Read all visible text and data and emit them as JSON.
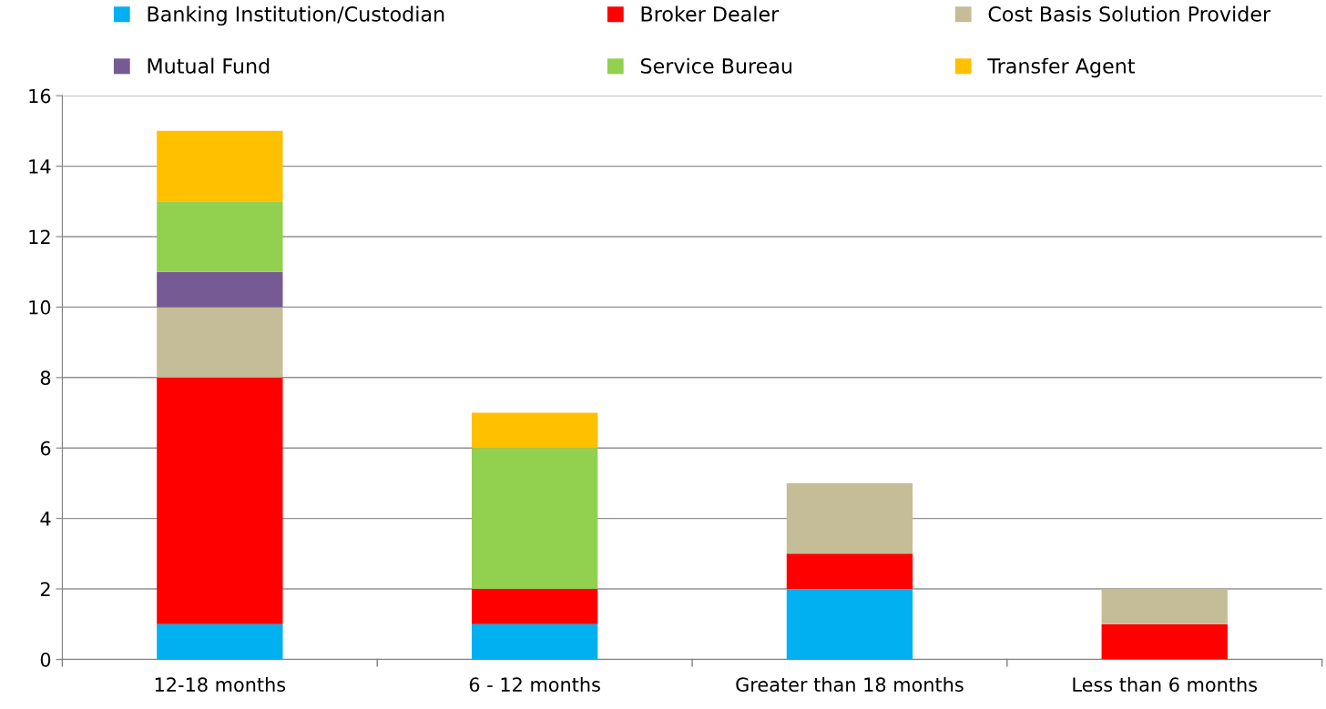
{
  "chart_data": {
    "type": "bar",
    "stacked": true,
    "categories": [
      "12-18 months",
      "6 - 12 months",
      "Greater than 18 months",
      "Less than 6 months"
    ],
    "series": [
      {
        "name": "Banking Institution/Custodian",
        "color": "#00b0f0",
        "values": [
          1,
          1,
          2,
          0
        ]
      },
      {
        "name": "Broker Dealer",
        "color": "#ff0000",
        "values": [
          7,
          1,
          1,
          1
        ]
      },
      {
        "name": "Cost Basis Solution Provider",
        "color": "#c4bd97",
        "values": [
          2,
          0,
          2,
          1
        ]
      },
      {
        "name": "Mutual Fund",
        "color": "#765a94",
        "values": [
          1,
          0,
          0,
          0
        ]
      },
      {
        "name": "Service Bureau",
        "color": "#92d050",
        "values": [
          2,
          4,
          0,
          0
        ]
      },
      {
        "name": "Transfer Agent",
        "color": "#ffc000",
        "values": [
          2,
          1,
          0,
          0
        ]
      }
    ],
    "ylim": [
      0,
      16
    ],
    "yticks": [
      0,
      2,
      4,
      6,
      8,
      10,
      12,
      14,
      16
    ],
    "grid": "y",
    "legend": "top"
  }
}
